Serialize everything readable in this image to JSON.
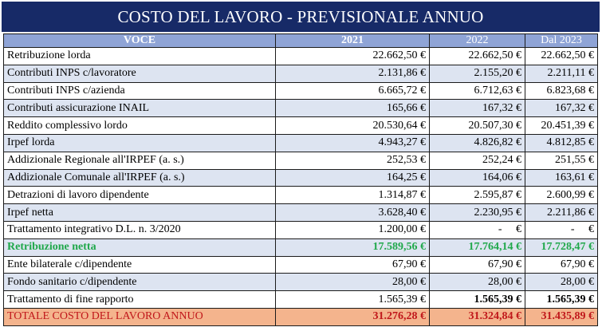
{
  "title": "COSTO DEL LAVORO - PREVISIONALE ANNUO",
  "headers": {
    "voce": "VOCE",
    "y2021": "2021",
    "y2022": "2022",
    "y2023": "Dal 2023"
  },
  "rows": [
    {
      "label": "Retribuzione lorda",
      "v2021": "22.662,50 €",
      "v2022": "22.662,50 €",
      "v2023": "22.662,50 €"
    },
    {
      "label": "Contributi INPS c/lavoratore",
      "v2021": "2.131,86 €",
      "v2022": "2.155,20 €",
      "v2023": "2.211,11 €"
    },
    {
      "label": "Contributi INPS c/azienda",
      "v2021": "6.665,72 €",
      "v2022": "6.712,63 €",
      "v2023": "6.823,68 €"
    },
    {
      "label": "Contributi assicurazione INAIL",
      "v2021": "165,66 €",
      "v2022": "167,32 €",
      "v2023": "167,32 €"
    },
    {
      "label": "Reddito complessivo lordo",
      "v2021": "20.530,64 €",
      "v2022": "20.507,30 €",
      "v2023": "20.451,39 €"
    },
    {
      "label": "Irpef lorda",
      "v2021": "4.943,27 €",
      "v2022": "4.826,82 €",
      "v2023": "4.812,85 €"
    },
    {
      "label": "Addizionale Regionale all'IRPEF (a. s.)",
      "v2021": "252,53 €",
      "v2022": "252,24 €",
      "v2023": "251,55 €"
    },
    {
      "label": "Addizionale Comunale all'IRPEF (a. s.)",
      "v2021": "164,25 €",
      "v2022": "164,06 €",
      "v2023": "163,61 €"
    },
    {
      "label": "Detrazioni di lavoro dipendente",
      "v2021": "1.314,87 €",
      "v2022": "2.595,87 €",
      "v2023": "2.600,99 €"
    },
    {
      "label": "Irpef netta",
      "v2021": "3.628,40 €",
      "v2022": "2.230,95 €",
      "v2023": "2.211,86 €"
    },
    {
      "label": "Trattamento integrativo D.L. n. 3/2020",
      "v2021": "1.200,00 €",
      "v2022": "-     €",
      "v2023": "-     €"
    },
    {
      "label": "Retribuzione netta",
      "v2021": "17.589,56 €",
      "v2022": "17.764,14 €",
      "v2023": "17.728,47 €"
    },
    {
      "label": "Ente bilaterale c/dipendente",
      "v2021": "67,90 €",
      "v2022": "67,90 €",
      "v2023": "67,90 €"
    },
    {
      "label": "Fondo sanitario c/dipendente",
      "v2021": "28,00 €",
      "v2022": "28,00 €",
      "v2023": "28,00 €"
    },
    {
      "label": "Trattamento di fine rapporto",
      "v2021": "1.565,39 €",
      "v2022": "1.565,39 €",
      "v2023": "1.565,39 €"
    }
  ],
  "total": {
    "label": "TOTALE COSTO DEL LAVORO ANNUO",
    "v2021": "31.276,28 €",
    "v2022": "31.324,84 €",
    "v2023": "31.435,89 €"
  },
  "colors": {
    "title_bg": "#172a67",
    "header_bg": "#8fa4d6",
    "alt_row": "#dde4f1",
    "net_text": "#1fa84a",
    "total_bg": "#f4b48d",
    "total_text": "#c0171b"
  }
}
